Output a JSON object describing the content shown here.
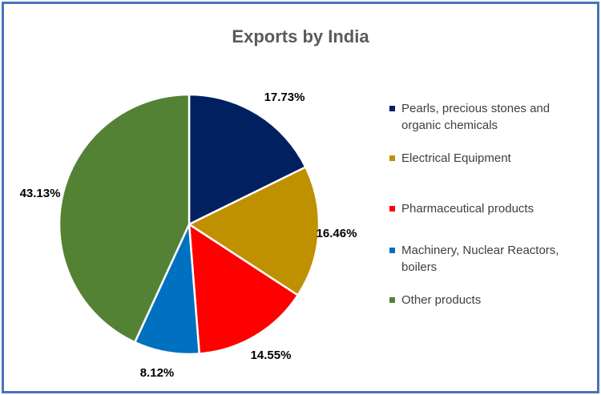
{
  "chart_data": {
    "type": "pie",
    "title": "Exports by India",
    "legend_position": "right",
    "slices": [
      {
        "label": "Pearls, precious stones and organic chemicals",
        "value": 17.73,
        "value_label": "17.73%",
        "color": "#002060"
      },
      {
        "label": "Electrical Equipment",
        "value": 16.46,
        "value_label": "16.46%",
        "color": "#bf9000"
      },
      {
        "label": "Pharmaceutical products",
        "value": 14.55,
        "value_label": "14.55%",
        "color": "#ff0000"
      },
      {
        "label": "Machinery, Nuclear Reactors, boilers",
        "value": 8.12,
        "value_label": "8.12%",
        "color": "#0070c0"
      },
      {
        "label": "Other products",
        "value": 43.13,
        "value_label": "43.13%",
        "color": "#548235"
      }
    ]
  }
}
